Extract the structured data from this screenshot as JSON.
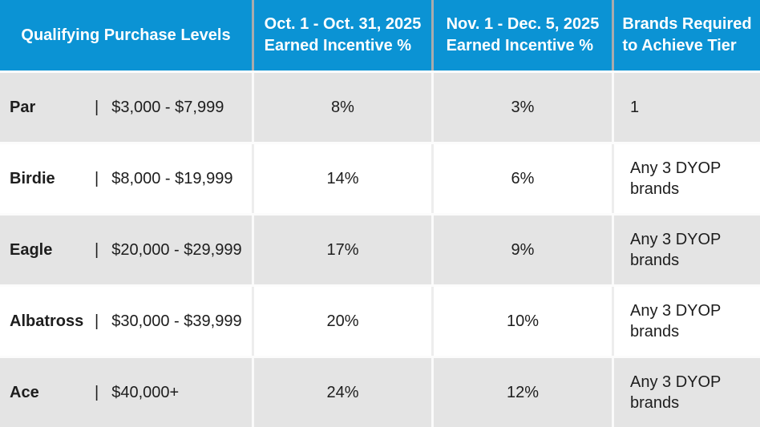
{
  "table": {
    "pipe": "|",
    "header": {
      "col1": "Qualifying Purchase Levels",
      "col2_line1": "Oct. 1 - Oct. 31, 2025",
      "col2_line2": "Earned Incentive %",
      "col3_line1": "Nov. 1 - Dec. 5, 2025",
      "col3_line2": "Earned Incentive %",
      "col4_line1": "Brands Required",
      "col4_line2": "to Achieve Tier"
    },
    "rows": [
      {
        "tier": "Par",
        "range": "$3,000 - $7,999",
        "oct_pct": "8%",
        "nov_pct": "3%",
        "brands": "1"
      },
      {
        "tier": "Birdie",
        "range": "$8,000 - $19,999",
        "oct_pct": "14%",
        "nov_pct": "6%",
        "brands": "Any 3 DYOP brands"
      },
      {
        "tier": "Eagle",
        "range": "$20,000 - $29,999",
        "oct_pct": "17%",
        "nov_pct": "9%",
        "brands": "Any 3 DYOP brands"
      },
      {
        "tier": "Albatross",
        "range": "$30,000 - $39,999",
        "oct_pct": "20%",
        "nov_pct": "10%",
        "brands": "Any 3 DYOP brands"
      },
      {
        "tier": "Ace",
        "range": "$40,000+",
        "oct_pct": "24%",
        "nov_pct": "12%",
        "brands": "Any 3 DYOP brands"
      }
    ]
  },
  "colors": {
    "header_bg": "#0b93d4",
    "header_text": "#ffffff",
    "header_divider": "#a9abac",
    "row_alt_bg": "#e4e4e4",
    "row_bg": "#ffffff",
    "body_text": "#1d1d1d"
  }
}
